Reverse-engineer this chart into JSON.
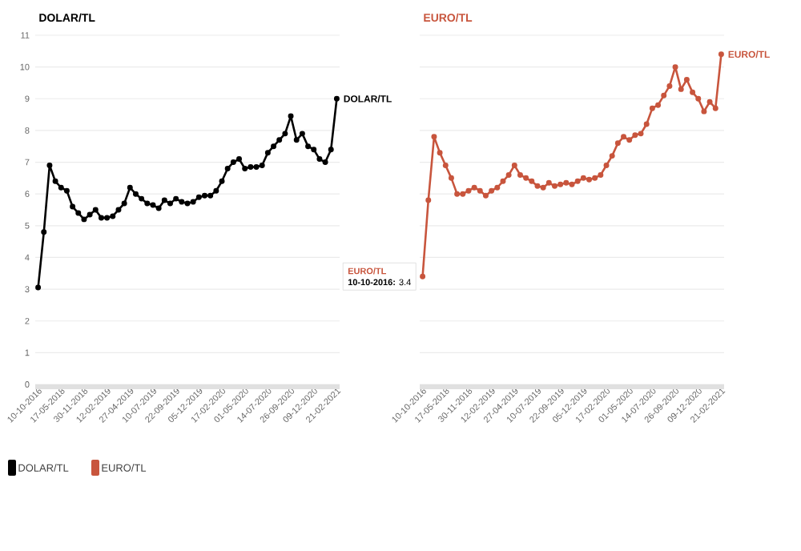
{
  "chart_data": [
    {
      "type": "line",
      "title": "DOLAR/TL",
      "categories": [
        "10-10-2016",
        null,
        null,
        null,
        "17-05-2018",
        null,
        null,
        null,
        "30-11-2018",
        null,
        null,
        null,
        "12-02-2019",
        null,
        null,
        null,
        "27-04-2019",
        null,
        null,
        null,
        "10-07-2019",
        null,
        null,
        null,
        "22-09-2019",
        null,
        null,
        null,
        "05-12-2019",
        null,
        null,
        null,
        "17-02-2020",
        null,
        null,
        null,
        "01-05-2020",
        null,
        null,
        null,
        "14-07-2020",
        null,
        null,
        null,
        "26-09-2020",
        null,
        null,
        null,
        "09-12-2020",
        null,
        null,
        null,
        "21-02-2021"
      ],
      "series": [
        {
          "name": "DOLAR/TL",
          "color": "#000000",
          "values": [
            3.05,
            4.8,
            6.9,
            6.4,
            6.2,
            6.1,
            5.6,
            5.4,
            5.2,
            5.35,
            5.5,
            5.25,
            5.25,
            5.3,
            5.5,
            5.7,
            6.2,
            6.0,
            5.85,
            5.7,
            5.65,
            5.55,
            5.8,
            5.7,
            5.85,
            5.75,
            5.7,
            5.75,
            5.9,
            5.95,
            5.95,
            6.1,
            6.4,
            6.8,
            7.0,
            7.1,
            6.8,
            6.85,
            6.85,
            6.9,
            7.3,
            7.5,
            7.7,
            7.9,
            8.45,
            7.7,
            7.9,
            7.5,
            7.4,
            7.1,
            7.0,
            7.4,
            9.0
          ]
        }
      ],
      "ylim": [
        0,
        11
      ],
      "yticks": [
        0,
        1,
        2,
        3,
        4,
        5,
        6,
        7,
        8,
        9,
        10,
        11
      ],
      "grid": "y",
      "marker": "circle",
      "legend": "bottom left"
    },
    {
      "type": "line",
      "title": "EURO/TL",
      "categories": [
        "10-10-2016",
        null,
        null,
        null,
        "17-05-2018",
        null,
        null,
        null,
        "30-11-2018",
        null,
        null,
        null,
        "12-02-2019",
        null,
        null,
        null,
        "27-04-2019",
        null,
        null,
        null,
        "10-07-2019",
        null,
        null,
        null,
        "22-09-2019",
        null,
        null,
        null,
        "05-12-2019",
        null,
        null,
        null,
        "17-02-2020",
        null,
        null,
        null,
        "01-05-2020",
        null,
        null,
        null,
        "14-07-2020",
        null,
        null,
        null,
        "26-09-2020",
        null,
        null,
        null,
        "09-12-2020",
        null,
        null,
        null,
        "21-02-2021"
      ],
      "series": [
        {
          "name": "EURO/TL",
          "color": "#c8553d",
          "values": [
            3.4,
            5.8,
            7.8,
            7.3,
            6.9,
            6.5,
            6.0,
            6.0,
            6.1,
            6.2,
            6.1,
            5.95,
            6.1,
            6.2,
            6.4,
            6.6,
            6.9,
            6.6,
            6.5,
            6.4,
            6.25,
            6.2,
            6.35,
            6.25,
            6.3,
            6.35,
            6.3,
            6.4,
            6.5,
            6.45,
            6.5,
            6.6,
            6.9,
            7.2,
            7.6,
            7.8,
            7.7,
            7.85,
            7.9,
            8.2,
            8.7,
            8.8,
            9.1,
            9.4,
            10.0,
            9.3,
            9.6,
            9.2,
            9.0,
            8.6,
            8.9,
            8.7,
            10.4
          ]
        }
      ],
      "ylim": [
        0,
        11
      ],
      "yticks": [
        0,
        1,
        2,
        3,
        4,
        5,
        6,
        7,
        8,
        9,
        10,
        11
      ],
      "grid": "y",
      "marker": "circle",
      "legend": "bottom left",
      "tick_labels": "x",
      "annotations": [
        "EURO/TL",
        "**10-10-2016:** 3.4"
      ]
    }
  ]
}
